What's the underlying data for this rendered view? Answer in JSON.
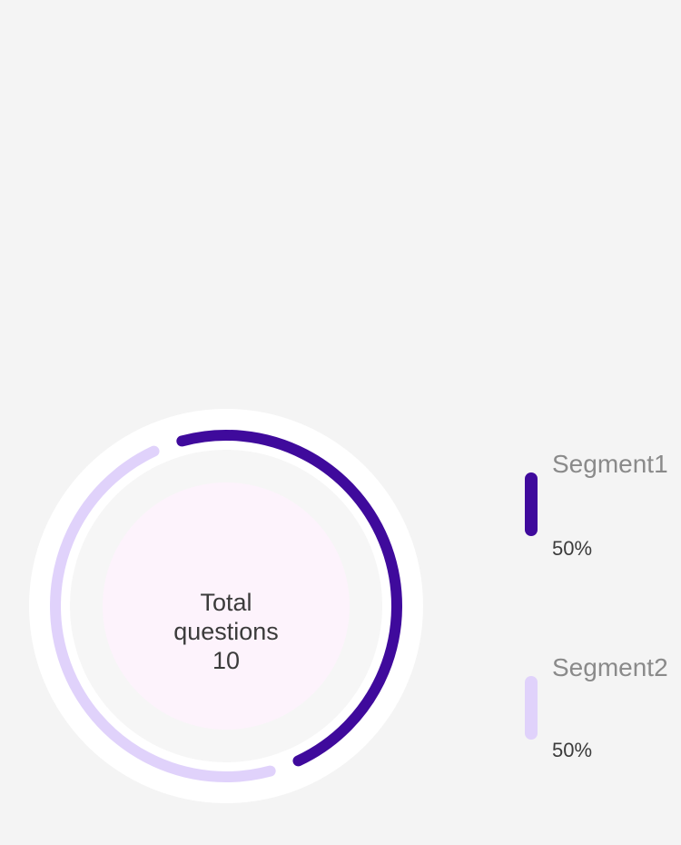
{
  "chart_data": {
    "type": "pie",
    "style": "donut",
    "center_text": {
      "line1": "Total",
      "line2": "questions",
      "value": "10"
    },
    "legend_position": "right",
    "series": [
      {
        "name": "Segment1",
        "value": 50,
        "percent_label": "50%",
        "color": "#3f0a9c"
      },
      {
        "name": "Segment2",
        "value": 50,
        "percent_label": "50%",
        "color": "#e0d2fb"
      }
    ]
  },
  "colors": {
    "background": "#f4f4f4",
    "outer_ring": "#ffffff",
    "inner_disc": "#f6f6f6",
    "center_disc": "#fdf3fc"
  }
}
